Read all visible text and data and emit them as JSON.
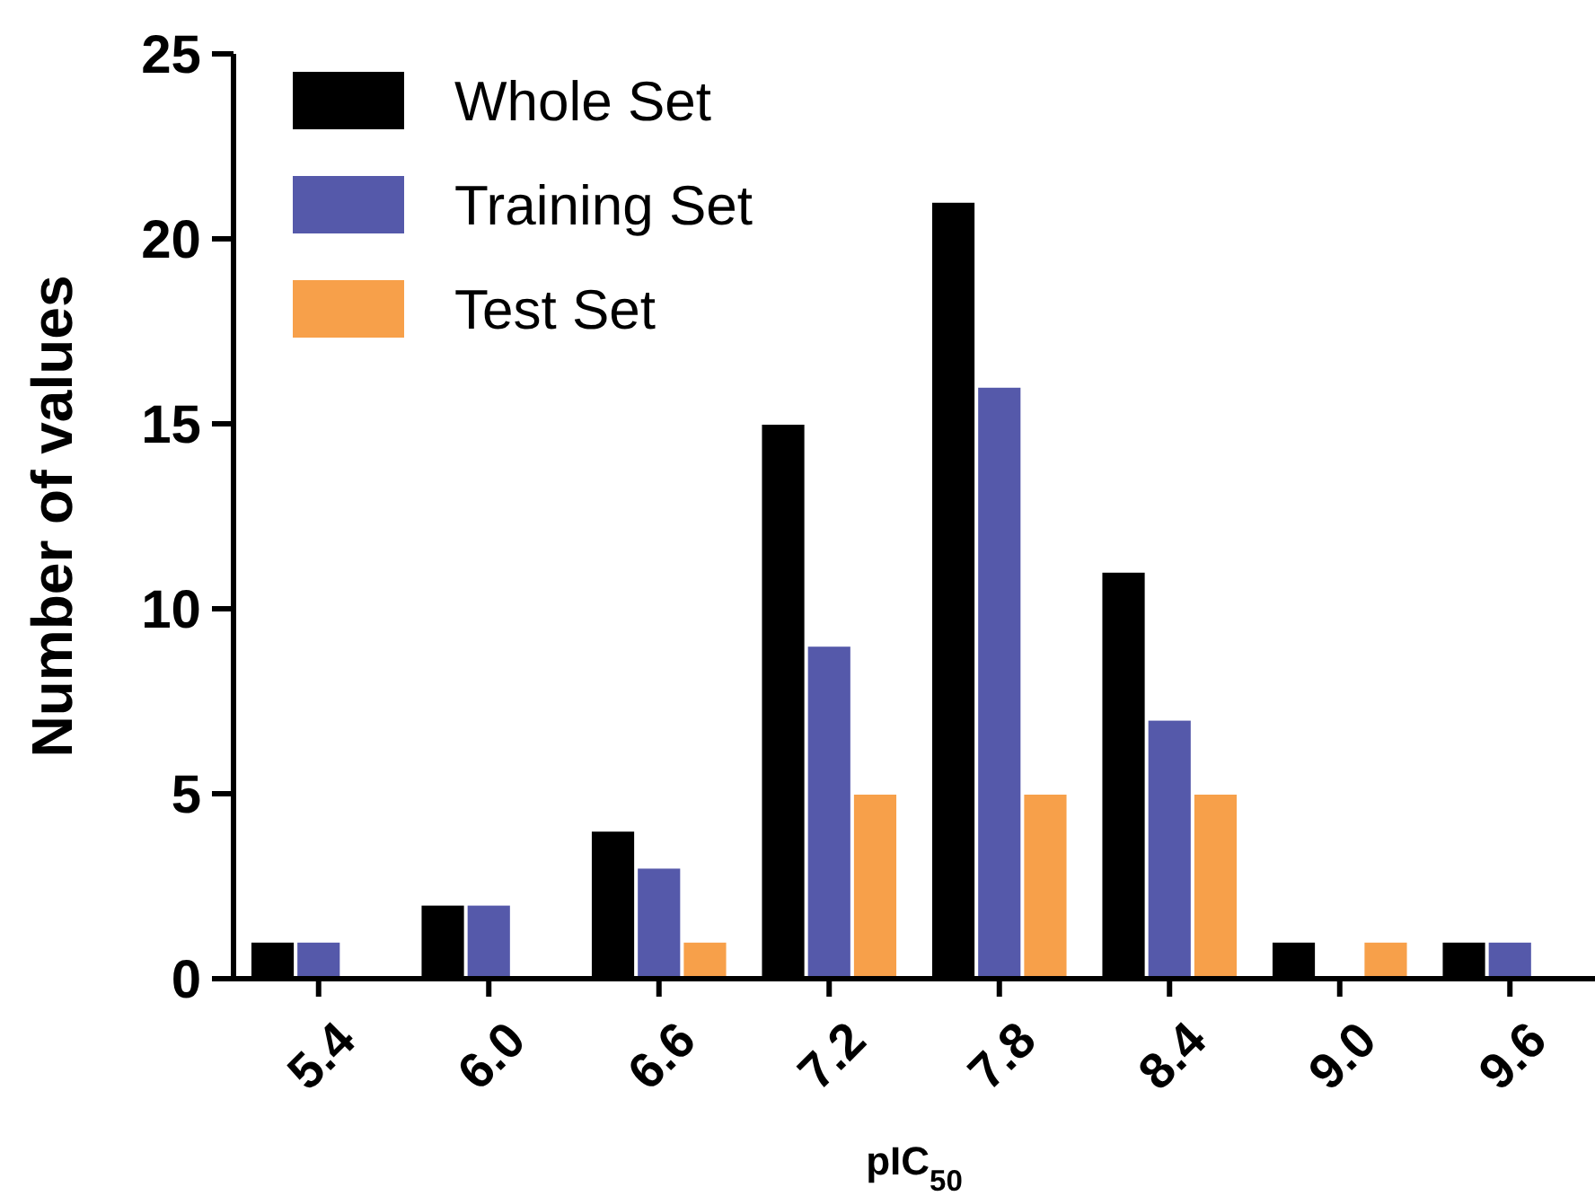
{
  "chart_data": {
    "type": "bar",
    "xlabel": "pIC$_{50}$",
    "ylabel": "Number of values",
    "categories": [
      "5.4",
      "6.0",
      "6.6",
      "7.2",
      "7.8",
      "8.4",
      "9.0",
      "9.6"
    ],
    "series": [
      {
        "name": "Whole Set",
        "color": "#000000",
        "values": [
          1,
          2,
          4,
          15,
          21,
          11,
          1,
          1
        ]
      },
      {
        "name": "Training Set",
        "color": "#5559aa",
        "values": [
          1,
          2,
          3,
          9,
          16,
          7,
          0,
          1
        ]
      },
      {
        "name": "Test Set",
        "color": "#f7a04a",
        "values": [
          0,
          0,
          1,
          5,
          5,
          5,
          1,
          0
        ]
      }
    ],
    "ylim": [
      0,
      25
    ],
    "yticks": [
      0,
      5,
      10,
      15,
      20,
      25
    ],
    "grid": false,
    "legend": "top left"
  }
}
